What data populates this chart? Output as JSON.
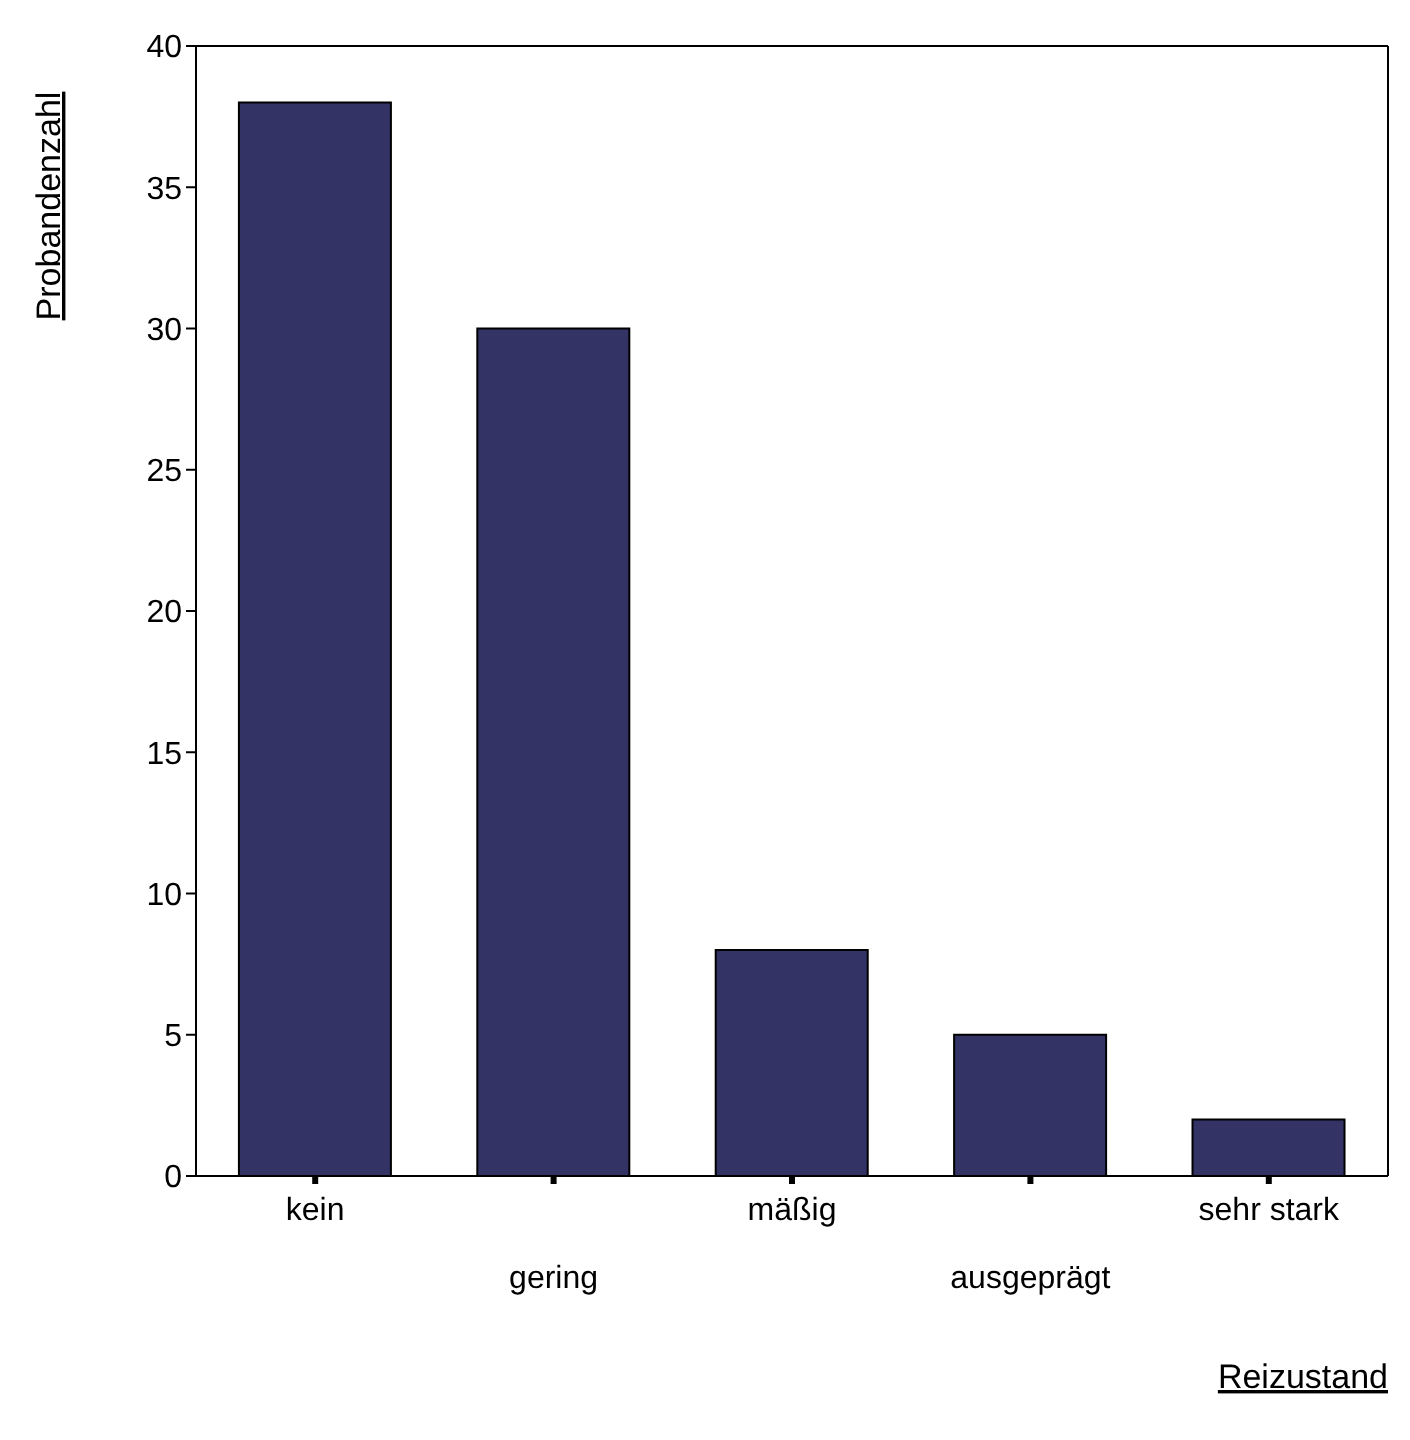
{
  "chart_data": {
    "type": "bar",
    "xlabel": "Reizustand",
    "ylabel": "Probandenzahl",
    "categories": [
      "kein",
      "gering",
      "mäßig",
      "ausgeprägt",
      "sehr stark"
    ],
    "values": [
      38,
      30,
      8,
      5,
      2
    ],
    "color": "#333366",
    "ylim": [
      0,
      40
    ],
    "yticks": [
      0,
      5,
      10,
      15,
      20,
      25,
      30,
      35,
      40
    ]
  }
}
